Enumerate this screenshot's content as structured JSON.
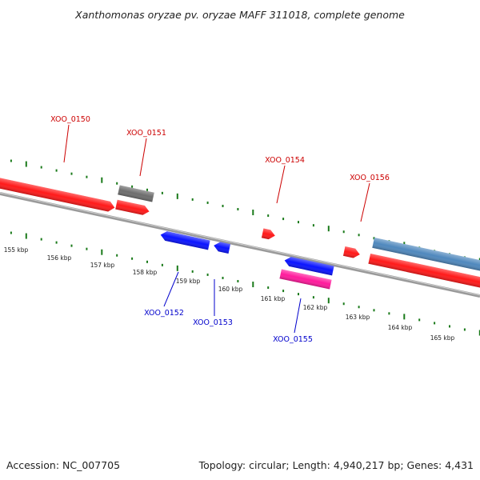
{
  "title": "Xanthomonas oryzae pv. oryzae MAFF 311018, complete genome",
  "footer": {
    "accession": "Accession: NC_007705",
    "summary": "Topology: circular; Length: 4,940,217 bp; Genes: 4,431"
  },
  "colors": {
    "forward_label": "#cc0000",
    "reverse_label": "#0000cc",
    "tick": "#1a7a1a",
    "backbone": "#888888"
  },
  "ticks": [
    "155 kbp",
    "156 kbp",
    "157 kbp",
    "158 kbp",
    "159 kbp",
    "160 kbp",
    "161 kbp",
    "162 kbp",
    "163 kbp",
    "164 kbp",
    "165 kbp"
  ],
  "genes": [
    {
      "label": "XOO_0150",
      "strand": "forward",
      "color": "#ff1a1a"
    },
    {
      "label": "XOO_0151",
      "strand": "forward",
      "color": "#ff1a1a"
    },
    {
      "label": "XOO_0152",
      "strand": "reverse",
      "color": "#0a14ff"
    },
    {
      "label": "XOO_0153",
      "strand": "reverse",
      "color": "#0a14ff"
    },
    {
      "label": "XOO_0154",
      "strand": "forward",
      "color": "#ff1a1a"
    },
    {
      "label": "XOO_0155",
      "strand": "reverse",
      "color": "#0a14ff"
    },
    {
      "label": "XOO_0156",
      "strand": "forward",
      "color": "#ff1a1a"
    }
  ],
  "features": [
    {
      "name": "gray-feature",
      "color": "#6d6d6d"
    },
    {
      "name": "steel-blue-feature",
      "color": "#4f88bd"
    },
    {
      "name": "magenta-feature",
      "color": "#ff1a9c"
    },
    {
      "name": "red-long-feature",
      "color": "#ff1a1a"
    }
  ]
}
